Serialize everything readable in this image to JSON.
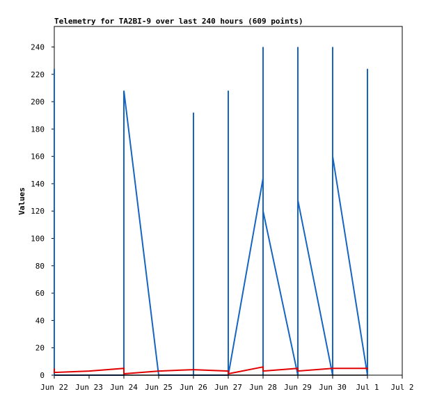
{
  "chart_data": {
    "type": "line",
    "title": "Telemetry for TA2BI-9 over last 240 hours (609 points)",
    "xlabel": "",
    "ylabel": "Values",
    "xlim": [
      "Jun 22",
      "Jul 2"
    ],
    "ylim": [
      0,
      255
    ],
    "x_ticks": [
      "Jun 22",
      "Jun 23",
      "Jun 24",
      "Jun 25",
      "Jun 26",
      "Jun 27",
      "Jun 28",
      "Jun 29",
      "Jun 30",
      "Jul 1",
      "Jul 2"
    ],
    "y_ticks": [
      0,
      20,
      40,
      60,
      80,
      100,
      120,
      140,
      160,
      180,
      200,
      220,
      240
    ],
    "grid": false,
    "legend": "none",
    "colors": {
      "blue": "#1565c0",
      "red": "#e00000",
      "black": "#000000"
    },
    "series": [
      {
        "color": "blue",
        "points": [
          [
            "Jun 22 00:00",
            0
          ],
          [
            "Jun 22 00:00",
            104
          ],
          [
            "Jun 22 00:00",
            0
          ],
          [
            "Jun 22 00:00",
            208
          ],
          [
            "Jun 22 00:00",
            0
          ],
          [
            "Jun 22 00:00",
            96
          ],
          [
            "Jun 22 00:00",
            0
          ],
          [
            "Jun 22 00:00",
            88
          ],
          [
            "Jun 22 00:00",
            0
          ],
          [
            "Jun 22 00:00",
            72
          ],
          [
            "Jun 22 00:00",
            0
          ],
          [
            "Jun 22 00:00",
            64
          ],
          [
            "Jun 22 00:00",
            0
          ],
          [
            "Jun 22 00:00",
            40
          ],
          [
            "Jun 22 00:00",
            0
          ],
          [
            "Jun 22 00:00",
            160
          ],
          [
            "Jun 22 00:00",
            0
          ],
          [
            "Jun 22 00:00",
            224
          ],
          [
            "Jun 22 00:00",
            0
          ],
          [
            "Jun 22 00:00",
            224
          ],
          [
            "Jun 22 00:00",
            0
          ],
          [
            "Jun 22 00:00",
            208
          ],
          [
            "Jun 22 00:00",
            0
          ],
          [
            "Jun 22 00:00",
            224
          ],
          [
            "Jun 22 00:00",
            0
          ],
          [
            "Jun 22 00:00",
            128
          ],
          [
            "Jun 22 00:00",
            0
          ],
          [
            "Jun 22 00:00",
            64
          ],
          [
            "Jun 22 00:00",
            0
          ],
          [
            "Jun 22 00:00",
            128
          ],
          [
            "Jun 22 00:00",
            0
          ],
          [
            "Jun 24 00:00",
            0
          ],
          [
            "Jun 24 00:00",
            72
          ],
          [
            "Jun 24 00:00",
            144
          ],
          [
            "Jun 24 00:00",
            208
          ],
          [
            "Jun 25 00:00",
            0
          ],
          [
            "Jun 26 00:00",
            0
          ],
          [
            "Jun 26 00:00",
            112
          ],
          [
            "Jun 26 00:00",
            192
          ],
          [
            "Jun 26 00:00",
            96
          ],
          [
            "Jun 26 00:00",
            0
          ],
          [
            "Jun 27 00:00",
            0
          ],
          [
            "Jun 27 00:00",
            208
          ],
          [
            "Jun 27 00:00",
            0
          ],
          [
            "Jun 28 00:00",
            144
          ],
          [
            "Jun 28 00:00",
            0
          ],
          [
            "Jun 28 00:00",
            240
          ],
          [
            "Jun 28 00:00",
            0
          ],
          [
            "Jun 28 00:00",
            208
          ],
          [
            "Jun 28 00:00",
            0
          ],
          [
            "Jun 28 00:00",
            224
          ],
          [
            "Jun 28 00:00",
            0
          ],
          [
            "Jun 28 00:00",
            128
          ],
          [
            "Jun 28 00:00",
            0
          ],
          [
            "Jun 28 00:00",
            64
          ],
          [
            "Jun 28 00:00",
            0
          ],
          [
            "Jun 28 00:00",
            96
          ],
          [
            "Jun 28 00:00",
            0
          ],
          [
            "Jun 28 00:00",
            144
          ],
          [
            "Jun 28 00:00",
            0
          ],
          [
            "Jun 28 00:00",
            240
          ],
          [
            "Jun 28 00:00",
            0
          ],
          [
            "Jun 28 00:00",
            160
          ],
          [
            "Jun 28 00:00",
            0
          ],
          [
            "Jun 28 00:00",
            240
          ],
          [
            "Jun 28 00:00",
            120
          ],
          [
            "Jun 29 00:00",
            0
          ],
          [
            "Jun 29 00:00",
            240
          ],
          [
            "Jun 29 00:00",
            0
          ],
          [
            "Jun 29 00:00",
            96
          ],
          [
            "Jun 29 00:00",
            0
          ],
          [
            "Jun 29 00:00",
            208
          ],
          [
            "Jun 29 00:00",
            0
          ],
          [
            "Jun 29 00:00",
            208
          ],
          [
            "Jun 29 00:00",
            128
          ],
          [
            "Jun 30 00:00",
            0
          ],
          [
            "Jun 30 00:00",
            192
          ],
          [
            "Jun 30 00:00",
            0
          ],
          [
            "Jun 30 00:00",
            224
          ],
          [
            "Jun 30 00:00",
            0
          ],
          [
            "Jun 30 00:00",
            40
          ],
          [
            "Jun 30 00:00",
            0
          ],
          [
            "Jun 30 00:00",
            240
          ],
          [
            "Jun 30 00:00",
            160
          ],
          [
            "Jul 1 00:00",
            0
          ],
          [
            "Jul 1 00:00",
            128
          ],
          [
            "Jul 1 00:00",
            0
          ],
          [
            "Jul 1 00:00",
            104
          ],
          [
            "Jul 1 00:00",
            0
          ],
          [
            "Jul 1 00:00",
            224
          ],
          [
            "Jul 1 00:00",
            0
          ],
          [
            "Jul 1 00:00",
            128
          ],
          [
            "Jul 1 00:00",
            0
          ],
          [
            "Jul 1 00:00",
            192
          ],
          [
            "Jul 1 00:00",
            0
          ]
        ]
      },
      {
        "color": "red",
        "points": [
          [
            "Jun 22 00:00",
            5
          ],
          [
            "Jun 22 00:00",
            2
          ],
          [
            "Jun 23 00:00",
            3
          ],
          [
            "Jun 24 00:00",
            5
          ],
          [
            "Jun 24 00:00",
            1
          ],
          [
            "Jun 25 00:00",
            3
          ],
          [
            "Jun 26 00:00",
            4
          ],
          [
            "Jun 27 00:00",
            3
          ],
          [
            "Jun 27 00:00",
            1
          ],
          [
            "Jun 28 00:00",
            6
          ],
          [
            "Jun 28 00:00",
            3
          ],
          [
            "Jun 29 00:00",
            5
          ],
          [
            "Jun 29 00:00",
            3
          ],
          [
            "Jun 30 00:00",
            5
          ],
          [
            "Jul 1 00:00",
            5
          ],
          [
            "Jul 1 00:00",
            4
          ]
        ]
      },
      {
        "color": "black",
        "points": [
          [
            "Jun 22 00:00",
            0
          ],
          [
            "Jul 1 00:00",
            0
          ]
        ]
      }
    ]
  }
}
